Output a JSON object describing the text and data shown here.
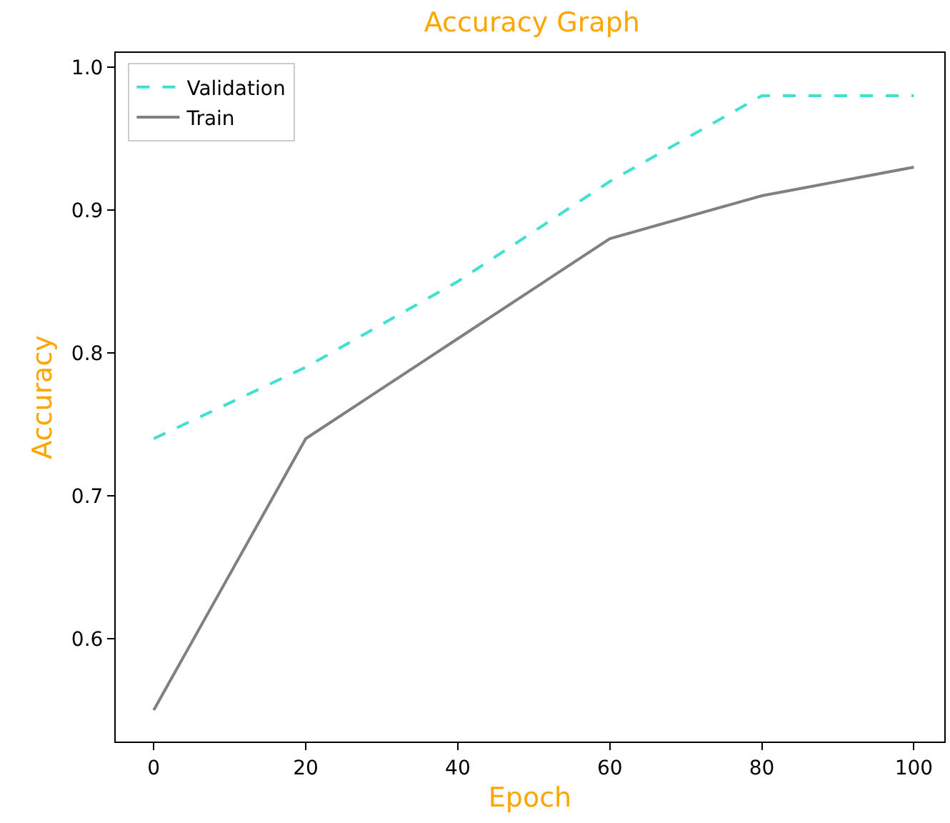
{
  "chart_data": {
    "type": "line",
    "title": "Accuracy Graph",
    "xlabel": "Epoch",
    "ylabel": "Accuracy",
    "x": [
      0,
      20,
      40,
      60,
      80,
      100
    ],
    "series": [
      {
        "name": "Validation",
        "color": "#40e0d0",
        "line_style": "dashed",
        "values": [
          0.74,
          0.79,
          0.85,
          0.92,
          0.98,
          0.98
        ]
      },
      {
        "name": "Train",
        "color": "#808080",
        "line_style": "solid",
        "values": [
          0.55,
          0.74,
          0.81,
          0.88,
          0.91,
          0.93
        ]
      }
    ],
    "xlim": [
      -5,
      104
    ],
    "ylim": [
      0.528,
      1.01
    ],
    "xticks": [
      0,
      20,
      40,
      60,
      80,
      100
    ],
    "yticks": [
      0.6,
      0.7,
      0.8,
      0.9,
      {
        "value": 1.0,
        "label": "1.0"
      }
    ],
    "legend": "top left",
    "marker": "none"
  }
}
